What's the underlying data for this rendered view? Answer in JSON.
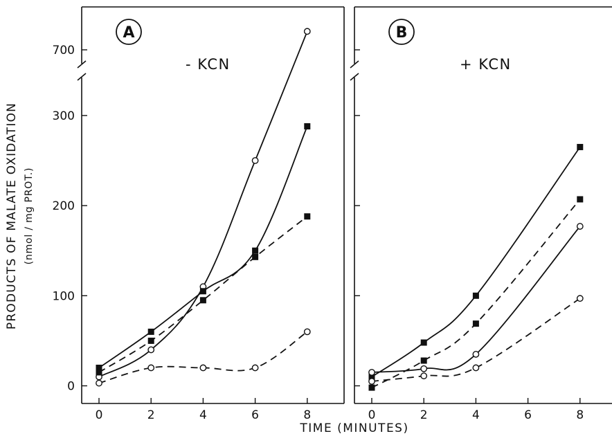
{
  "figure": {
    "ylabel_line1": "PRODUCTS OF MALATE OXIDATION",
    "ylabel_line2": "(nmol / mg PROT.)",
    "xlabel": "TIME (MINUTES)"
  },
  "chart_data": [
    {
      "type": "line",
      "panel": "A",
      "annotation": "- KCN",
      "x_ticks": [
        "0",
        "2",
        "4",
        "6",
        "8"
      ],
      "y_ticks": [
        "0",
        "100",
        "200",
        "300",
        "700"
      ],
      "y_axis_break": "between 300 and 700",
      "ylim": [
        0,
        780
      ],
      "xlim": [
        -0.6,
        9.3
      ],
      "grid": false,
      "series": [
        {
          "marker": "open-circle",
          "line": "solid",
          "x": [
            0,
            2,
            4,
            6,
            8
          ],
          "y": [
            10,
            40,
            110,
            250,
            750
          ]
        },
        {
          "marker": "filled-square",
          "line": "solid",
          "x": [
            0,
            2,
            4,
            6,
            8
          ],
          "y": [
            20,
            60,
            105,
            150,
            288
          ]
        },
        {
          "marker": "filled-square",
          "line": "dashed",
          "x": [
            0,
            2,
            4,
            6,
            8
          ],
          "y": [
            15,
            50,
            95,
            143,
            188
          ]
        },
        {
          "marker": "open-circle",
          "line": "dashed",
          "x": [
            0,
            2,
            4,
            6,
            8
          ],
          "y": [
            3,
            20,
            20,
            20,
            60
          ]
        }
      ]
    },
    {
      "type": "line",
      "panel": "B",
      "annotation": "+ KCN",
      "x_ticks": [
        "0",
        "2",
        "4",
        "6",
        "8"
      ],
      "y_ticks": [
        "0",
        "100",
        "200",
        "300",
        "700"
      ],
      "y_axis_break": "between 300 and 700",
      "ylim": [
        0,
        780
      ],
      "xlim": [
        -0.6,
        9.3
      ],
      "grid": false,
      "series": [
        {
          "marker": "filled-square",
          "line": "solid",
          "x": [
            0,
            2,
            4,
            8
          ],
          "y": [
            10,
            48,
            100,
            265
          ]
        },
        {
          "marker": "filled-square",
          "line": "dashed",
          "x": [
            0,
            2,
            4,
            8
          ],
          "y": [
            -2,
            28,
            69,
            207
          ]
        },
        {
          "marker": "open-circle",
          "line": "solid",
          "x": [
            0,
            2,
            4,
            8
          ],
          "y": [
            15,
            19,
            35,
            177
          ]
        },
        {
          "marker": "open-circle",
          "line": "dashed",
          "x": [
            0,
            2,
            4,
            8
          ],
          "y": [
            5,
            11,
            20,
            97
          ]
        }
      ]
    }
  ]
}
